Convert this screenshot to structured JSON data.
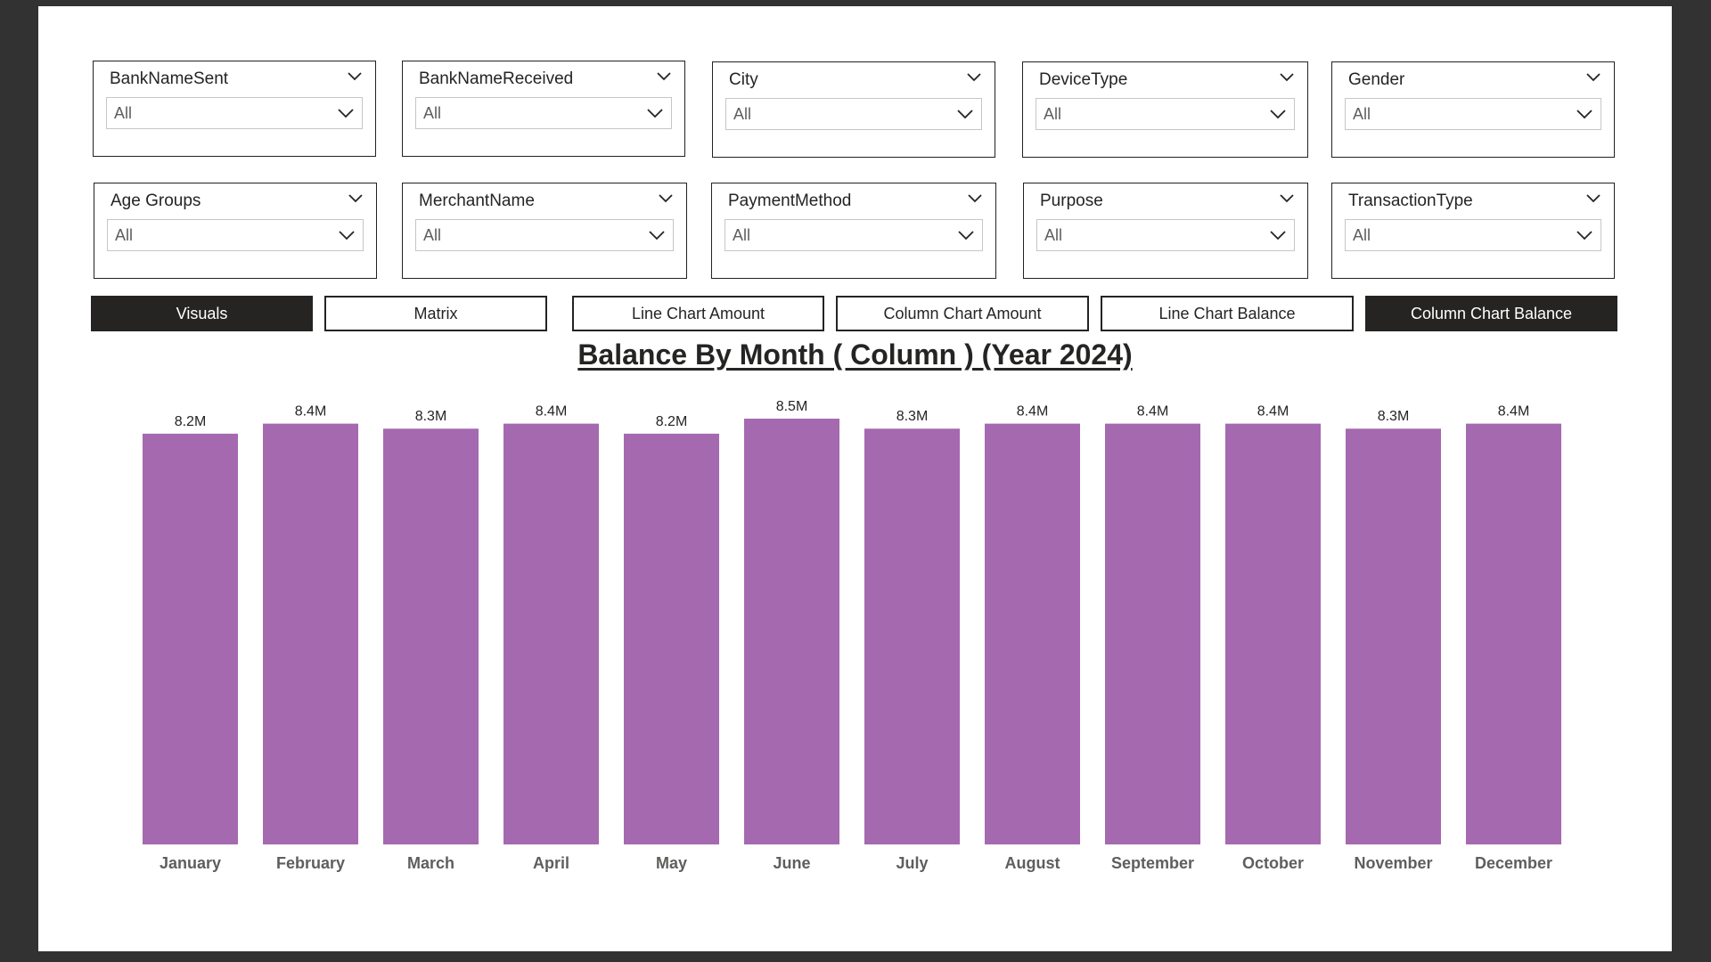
{
  "slicers": [
    {
      "title": "BankNameSent",
      "value": "All"
    },
    {
      "title": "BankNameReceived",
      "value": "All"
    },
    {
      "title": "City",
      "value": "All"
    },
    {
      "title": "DeviceType",
      "value": "All"
    },
    {
      "title": "Gender",
      "value": "All"
    },
    {
      "title": "Age Groups",
      "value": "All"
    },
    {
      "title": "MerchantName",
      "value": "All"
    },
    {
      "title": "PaymentMethod",
      "value": "All"
    },
    {
      "title": "Purpose",
      "value": "All"
    },
    {
      "title": "TransactionType",
      "value": "All"
    }
  ],
  "nav": [
    {
      "label": "Visuals",
      "active": true
    },
    {
      "label": "Matrix",
      "active": false
    },
    {
      "label": "Line Chart Amount",
      "active": false
    },
    {
      "label": "Column Chart Amount",
      "active": false
    },
    {
      "label": "Line Chart Balance",
      "active": false
    },
    {
      "label": "Column Chart Balance",
      "active": true
    }
  ],
  "colors": {
    "bar": "#A569B0",
    "nav_active_bg": "#252423",
    "background": "#323232"
  },
  "chart_data": {
    "type": "bar",
    "title": "Balance By Month ( Column ) (Year 2024)",
    "categories": [
      "January",
      "February",
      "March",
      "April",
      "May",
      "June",
      "July",
      "August",
      "September",
      "October",
      "November",
      "December"
    ],
    "values": [
      8.2,
      8.4,
      8.3,
      8.4,
      8.2,
      8.5,
      8.3,
      8.4,
      8.4,
      8.4,
      8.3,
      8.4
    ],
    "data_labels": [
      "8.2M",
      "8.4M",
      "8.3M",
      "8.4M",
      "8.2M",
      "8.5M",
      "8.3M",
      "8.4M",
      "8.4M",
      "8.4M",
      "8.3M",
      "8.4M"
    ],
    "unit": "M",
    "ylim": [
      0,
      8.5
    ],
    "grid": false,
    "legend": "none"
  }
}
